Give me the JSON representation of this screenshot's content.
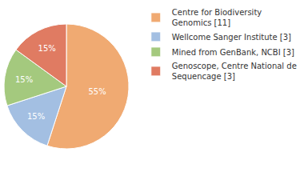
{
  "chart_data": {
    "type": "pie",
    "categories": [
      "Centre for Biodiversity Genomics [11]",
      "Wellcome Sanger Institute [3]",
      "Mined from GenBank, NCBI [3]",
      "Genoscope, Centre National de Sequencage [3]"
    ],
    "values": [
      55,
      15,
      15,
      15
    ],
    "value_labels": [
      "55%",
      "15%",
      "15%",
      "15%"
    ],
    "colors": [
      "#f0aa72",
      "#a3bfe2",
      "#a4c97e",
      "#e07b62"
    ],
    "data_labels": true,
    "legend": "right"
  }
}
